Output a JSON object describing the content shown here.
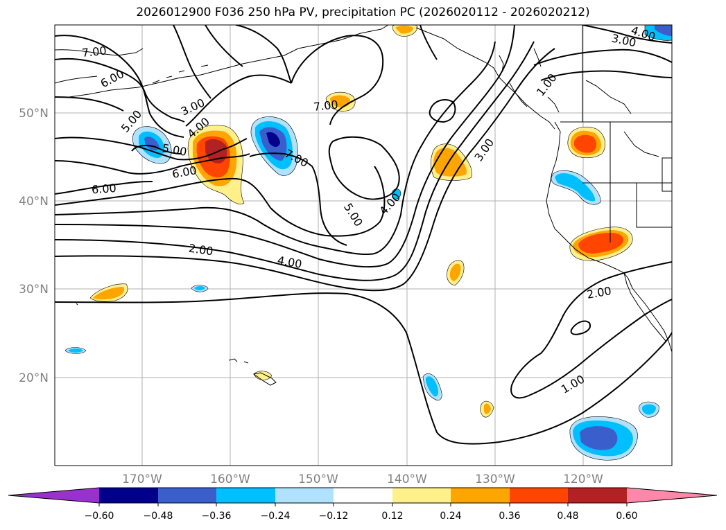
{
  "title": "2026012900 F036 250 hPa PV, precipitation PC (2026020112 - 2026020212)",
  "map": {
    "lon_labels": [
      "170°W",
      "160°W",
      "150°W",
      "140°W",
      "130°W",
      "120°W"
    ],
    "lat_labels": [
      "50°N",
      "40°N",
      "30°N",
      "20°N"
    ],
    "contour_labels": [
      "7.00",
      "6.00",
      "5.00",
      "3.00",
      "4.00",
      "5.00",
      "6.00",
      "6.00",
      "7.00",
      "7.00",
      "4.00",
      "5.00",
      "2.00",
      "4.00",
      "3.00",
      "1.00",
      "4.00",
      "3.00",
      "2.00",
      "1.00"
    ]
  },
  "colorbar": {
    "tick_labels": [
      "−0.60",
      "−0.48",
      "−0.36",
      "−0.24",
      "−0.12",
      "0.12",
      "0.24",
      "0.36",
      "0.48",
      "0.60"
    ],
    "colors": [
      "#9932cc",
      "#00008b",
      "#3a5fcd",
      "#00bfff",
      "#b0e2ff",
      "#ffffff",
      "#fff08c",
      "#ffa500",
      "#ff4500",
      "#b22222",
      "#ff88aa"
    ]
  }
}
